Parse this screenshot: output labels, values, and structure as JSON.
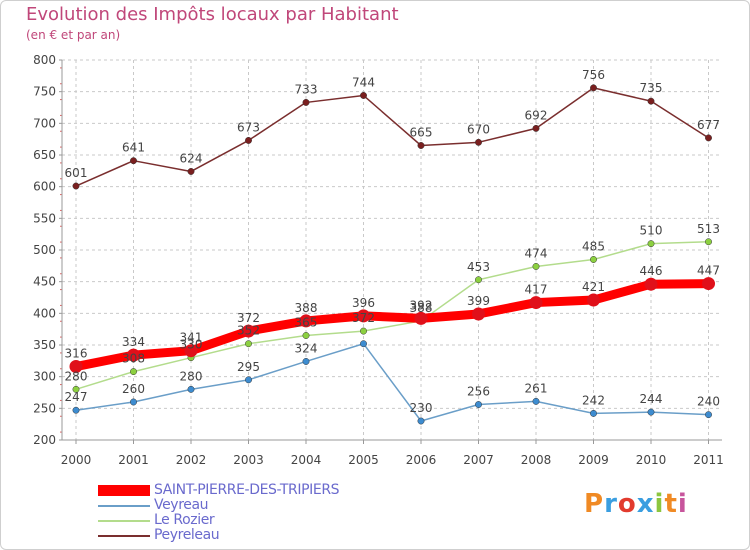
{
  "header": {
    "title": "Evolution des Impôts locaux par Habitant",
    "subtitle": "(en € et par an)"
  },
  "logo": {
    "text": "Proxiti",
    "letters": [
      "P",
      "r",
      "o",
      "x",
      "i",
      "t",
      "i"
    ],
    "colors": [
      "#f08a24",
      "#3a9ee0",
      "#e23b2e",
      "#3a9ee0",
      "#8cc63f",
      "#f08a24",
      "#c7559c"
    ]
  },
  "chart_data": {
    "type": "line",
    "title": "Evolution des Impôts locaux par Habitant",
    "subtitle": "(en € et par an)",
    "x": [
      "2000",
      "2001",
      "2002",
      "2003",
      "2004",
      "2005",
      "2006",
      "2007",
      "2008",
      "2009",
      "2010",
      "2011"
    ],
    "ylim": [
      200,
      800
    ],
    "yticks": [
      200,
      250,
      300,
      350,
      400,
      450,
      500,
      550,
      600,
      650,
      700,
      750,
      800
    ],
    "grid": true,
    "legend_position": "bottom-left",
    "series": [
      {
        "name": "SAINT-PIERRE-DES-TRIPIERS",
        "color": "#ff0000",
        "marker": "#e0101a",
        "bold": true,
        "values": [
          316,
          334,
          341,
          372,
          388,
          396,
          392,
          399,
          417,
          421,
          446,
          447
        ],
        "labels": [
          "316",
          "334",
          "341",
          "372",
          "388",
          "396",
          "392",
          "399",
          "417",
          "421",
          "446",
          "447"
        ]
      },
      {
        "name": "Veyreau",
        "color": "#6a9ec8",
        "marker": "#3d8cd0",
        "bold": false,
        "values": [
          247,
          260,
          280,
          295,
          324,
          352,
          230,
          256,
          261,
          242,
          244,
          240
        ],
        "labels": [
          "247",
          "260",
          "280",
          "295",
          "324",
          "",
          "230",
          "256",
          "261",
          "242",
          "244",
          "240"
        ]
      },
      {
        "name": "Le Rozier",
        "color": "#b3dc8c",
        "marker": "#8cd040",
        "bold": false,
        "values": [
          280,
          308,
          330,
          352,
          365,
          372,
          388,
          453,
          474,
          485,
          510,
          513
        ],
        "labels": [
          "280",
          "308",
          "330",
          "352",
          "365",
          "372",
          "388",
          "453",
          "474",
          "485",
          "510",
          "513"
        ]
      },
      {
        "name": "Peyreleau",
        "color": "#7a2e2e",
        "marker": "#7a1f1f",
        "bold": false,
        "values": [
          601,
          641,
          624,
          673,
          733,
          744,
          665,
          670,
          692,
          756,
          735,
          677
        ],
        "labels": [
          "601",
          "641",
          "624",
          "673",
          "733",
          "744",
          "665",
          "670",
          "692",
          "756",
          "735",
          "677"
        ]
      }
    ]
  },
  "legend": {
    "items": [
      {
        "label": "SAINT-PIERRE-DES-TRIPIERS",
        "color": "#ff0000",
        "thick": true
      },
      {
        "label": "Veyreau",
        "color": "#6a9ec8",
        "thick": false
      },
      {
        "label": "Le Rozier",
        "color": "#b3dc8c",
        "thick": false
      },
      {
        "label": "Peyreleau",
        "color": "#7a2e2e",
        "thick": false
      }
    ]
  }
}
